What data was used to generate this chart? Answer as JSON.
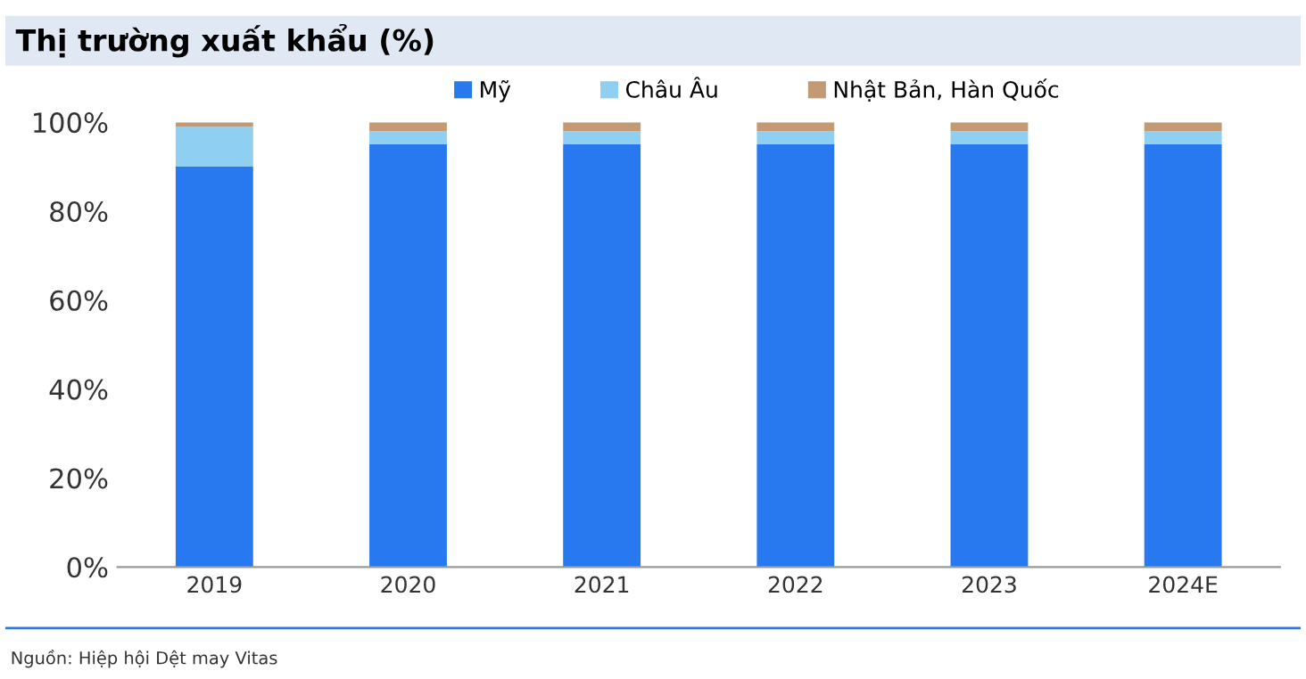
{
  "chart_data": {
    "type": "bar",
    "stacked": true,
    "title": "Thị trường xuất khẩu (%)",
    "categories": [
      "2019",
      "2020",
      "2021",
      "2022",
      "2023",
      "2024E"
    ],
    "series": [
      {
        "name": "Mỹ",
        "color": "#2878f0",
        "values": [
          90,
          95,
          95,
          95,
          95,
          95
        ]
      },
      {
        "name": "Châu Âu",
        "color": "#8fd0f2",
        "values": [
          9,
          3,
          3,
          3,
          3,
          3
        ]
      },
      {
        "name": "Nhật Bản, Hàn Quốc",
        "color": "#c49a74",
        "values": [
          1,
          2,
          2,
          2,
          2,
          2
        ]
      }
    ],
    "ylim": [
      0,
      100
    ],
    "yticks": [
      {
        "value": 0,
        "label": "0%"
      },
      {
        "value": 20,
        "label": "20%"
      },
      {
        "value": 40,
        "label": "40%"
      },
      {
        "value": 60,
        "label": "60%"
      },
      {
        "value": 80,
        "label": "80%"
      },
      {
        "value": 100,
        "label": "100%"
      }
    ],
    "grid": false,
    "legend": "top",
    "annotations": [
      "Nguồn: Hiệp hội Dệt may Vitas"
    ]
  }
}
